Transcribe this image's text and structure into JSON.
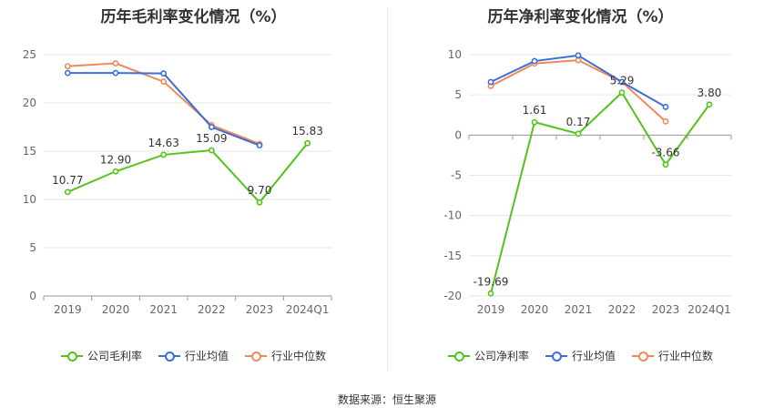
{
  "source_text": "数据来源：恒生聚源",
  "chart_data": [
    {
      "type": "line",
      "title": "历年毛利率变化情况（%）",
      "categories": [
        "2019",
        "2020",
        "2021",
        "2022",
        "2023",
        "2024Q1"
      ],
      "ylim": [
        0,
        25
      ],
      "yticks": [
        0,
        5,
        10,
        15,
        20,
        25
      ],
      "grid": true,
      "legend_position": "bottom",
      "series": [
        {
          "name": "公司毛利率",
          "color": "#52c41a",
          "labeled": true,
          "values": [
            10.77,
            12.9,
            14.63,
            15.09,
            9.7,
            15.83
          ],
          "labels": [
            "10.77",
            "12.90",
            "14.63",
            "15.09",
            "9.70",
            "15.83"
          ]
        },
        {
          "name": "行业均值",
          "color": "#3b6fd6",
          "labeled": false,
          "values": [
            23.1,
            23.1,
            23.05,
            17.5,
            15.6,
            null
          ]
        },
        {
          "name": "行业中位数",
          "color": "#f0895a",
          "labeled": false,
          "values": [
            23.8,
            24.1,
            22.2,
            17.7,
            15.75,
            null
          ]
        }
      ]
    },
    {
      "type": "line",
      "title": "历年净利率变化情况（%）",
      "categories": [
        "2019",
        "2020",
        "2021",
        "2022",
        "2023",
        "2024Q1"
      ],
      "ylim": [
        -20,
        10
      ],
      "yticks": [
        -20,
        -15,
        -10,
        -5,
        0,
        5,
        10
      ],
      "grid": true,
      "legend_position": "bottom",
      "series": [
        {
          "name": "公司净利率",
          "color": "#52c41a",
          "labeled": true,
          "values": [
            -19.69,
            1.61,
            0.17,
            5.29,
            -3.66,
            3.8
          ],
          "labels": [
            "-19.69",
            "1.61",
            "0.17",
            "5.29",
            "-3.66",
            "3.80"
          ]
        },
        {
          "name": "行业均值",
          "color": "#3b6fd6",
          "labeled": false,
          "values": [
            6.6,
            9.2,
            9.9,
            6.6,
            3.5,
            null
          ]
        },
        {
          "name": "行业中位数",
          "color": "#f0895a",
          "labeled": false,
          "values": [
            6.1,
            8.9,
            9.3,
            6.6,
            1.7,
            null
          ]
        }
      ]
    }
  ]
}
